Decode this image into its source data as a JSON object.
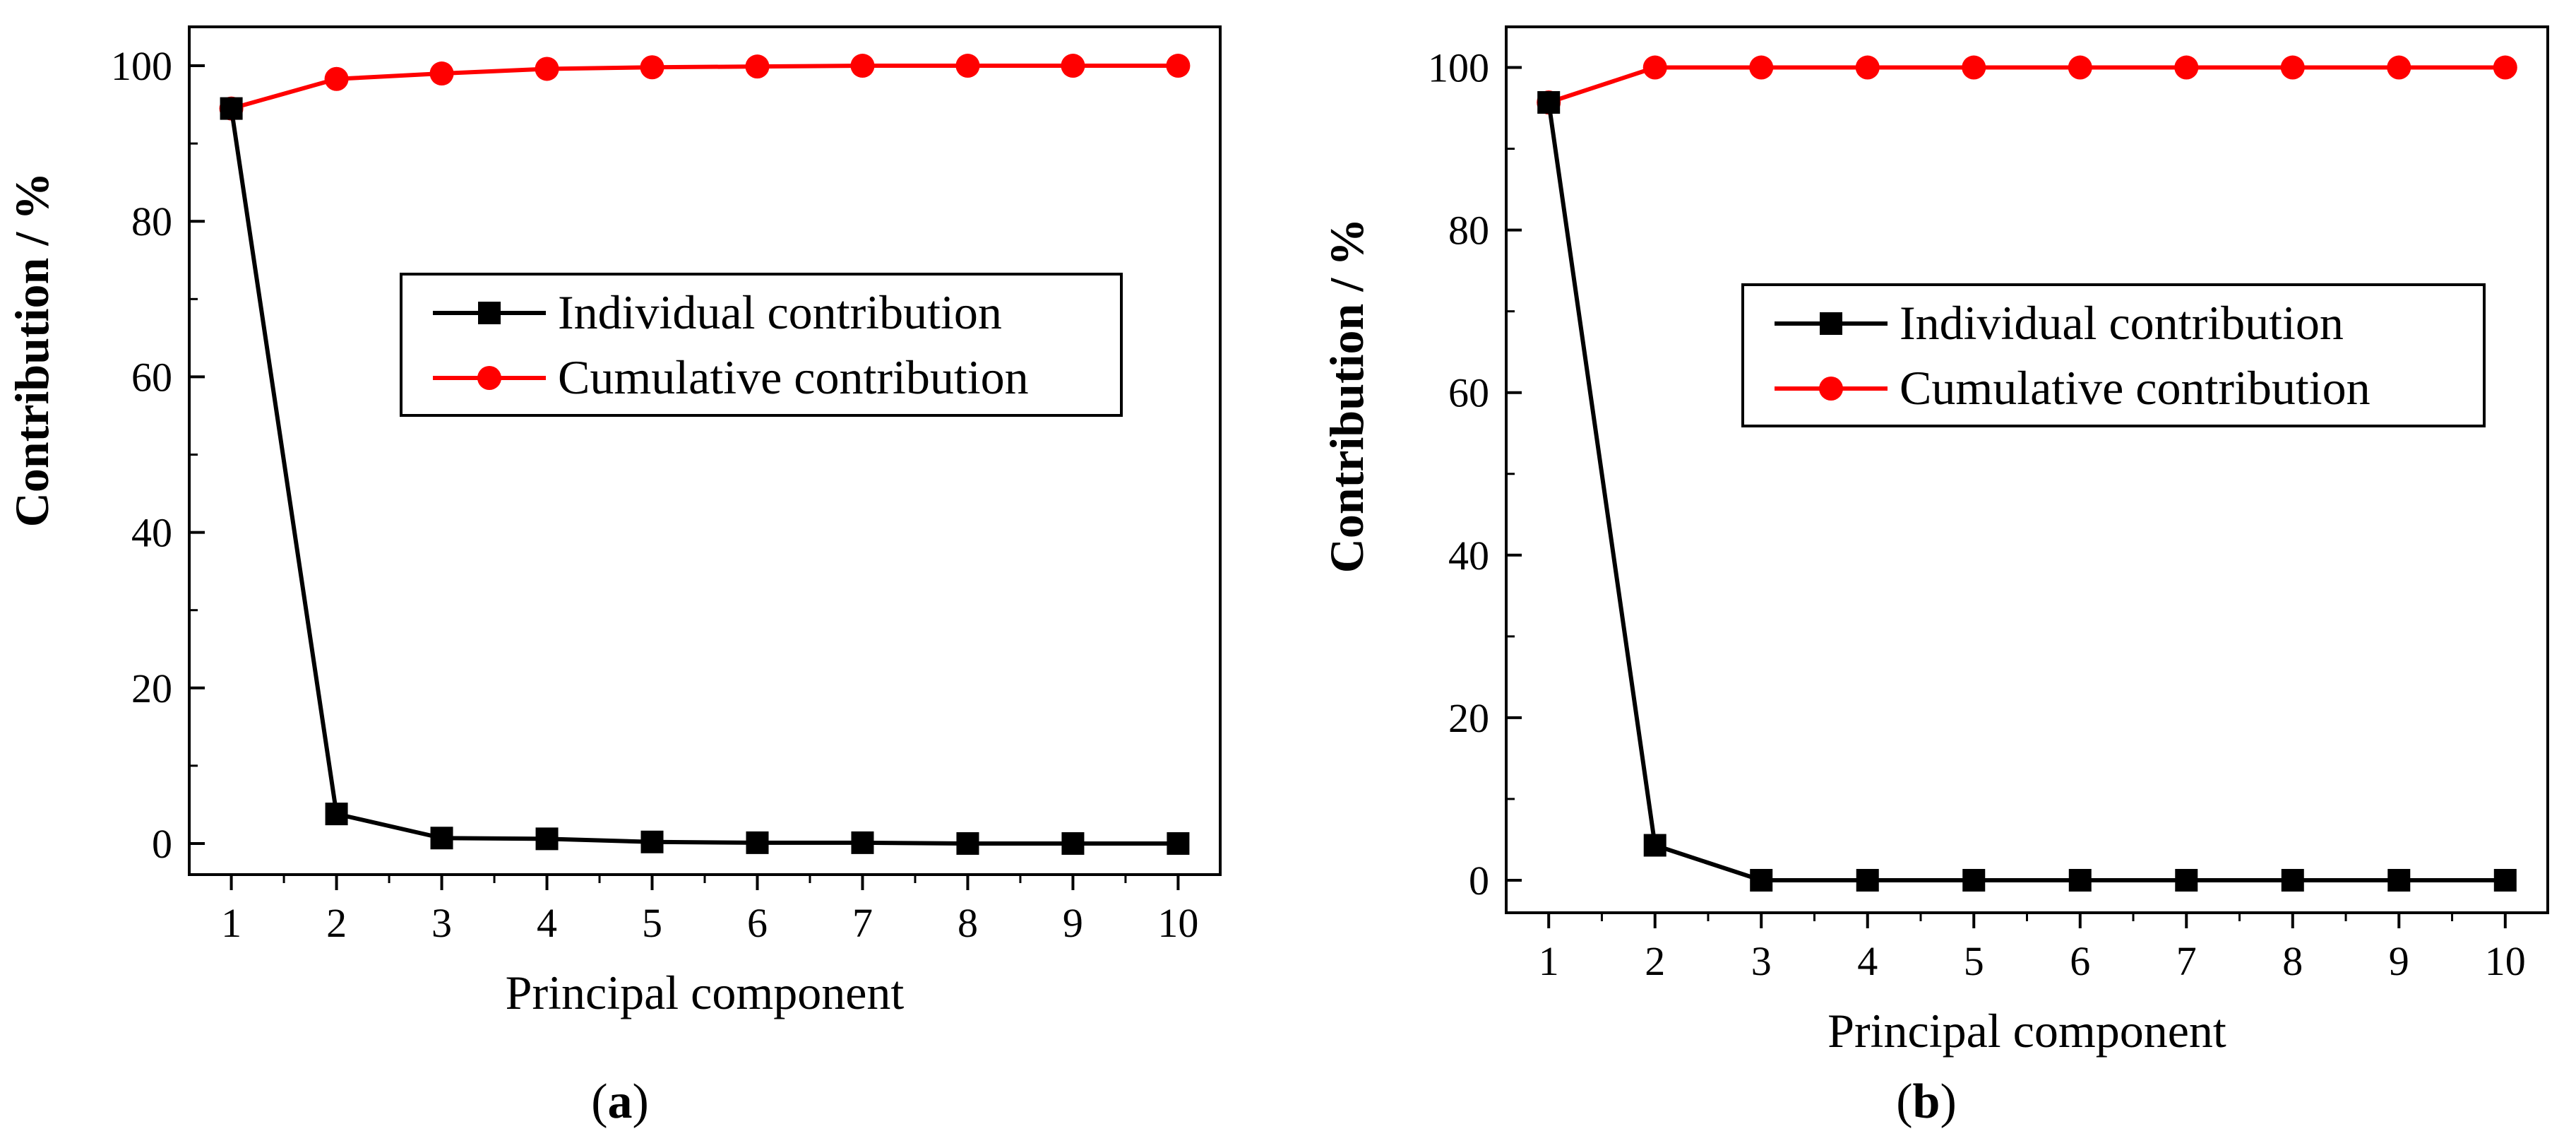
{
  "figure": {
    "panels": [
      {
        "caption_open": "(",
        "caption_letter": "a",
        "caption_close": ")"
      },
      {
        "caption_open": "(",
        "caption_letter": "b",
        "caption_close": ")"
      }
    ]
  },
  "chart_data": [
    {
      "type": "line",
      "panel": "a",
      "xlabel": "Principal component",
      "ylabel": "Contribution / %",
      "x": [
        1,
        2,
        3,
        4,
        5,
        6,
        7,
        8,
        9,
        10
      ],
      "xlim": [
        0.6,
        10.4
      ],
      "ylim": [
        -4,
        105
      ],
      "xticks": [
        1,
        2,
        3,
        4,
        5,
        6,
        7,
        8,
        9,
        10
      ],
      "yticks": [
        0,
        20,
        40,
        60,
        80,
        100
      ],
      "grid": false,
      "legend_position": "center-right",
      "series": [
        {
          "name": "Individual contribution",
          "color": "#000000",
          "marker": "square",
          "values": [
            94.5,
            3.8,
            0.7,
            0.6,
            0.2,
            0.1,
            0.1,
            0.0,
            0.0,
            0.0
          ]
        },
        {
          "name": "Cumulative contribution",
          "color": "#ff0000",
          "marker": "circle",
          "values": [
            94.5,
            98.3,
            99.0,
            99.6,
            99.8,
            99.9,
            100.0,
            100.0,
            100.0,
            100.0
          ]
        }
      ]
    },
    {
      "type": "line",
      "panel": "b",
      "xlabel": "Principal component",
      "ylabel": "Contribution / %",
      "x": [
        1,
        2,
        3,
        4,
        5,
        6,
        7,
        8,
        9,
        10
      ],
      "xlim": [
        0.6,
        10.4
      ],
      "ylim": [
        -4,
        105
      ],
      "xticks": [
        1,
        2,
        3,
        4,
        5,
        6,
        7,
        8,
        9,
        10
      ],
      "yticks": [
        0,
        20,
        40,
        60,
        80,
        100
      ],
      "grid": false,
      "legend_position": "center-right",
      "series": [
        {
          "name": "Individual contribution",
          "color": "#000000",
          "marker": "square",
          "values": [
            95.7,
            4.3,
            0.0,
            0.0,
            0.0,
            0.0,
            0.0,
            0.0,
            0.0,
            0.0
          ]
        },
        {
          "name": "Cumulative contribution",
          "color": "#ff0000",
          "marker": "circle",
          "values": [
            95.7,
            100.0,
            100.0,
            100.0,
            100.0,
            100.0,
            100.0,
            100.0,
            100.0,
            100.0
          ]
        }
      ]
    }
  ]
}
